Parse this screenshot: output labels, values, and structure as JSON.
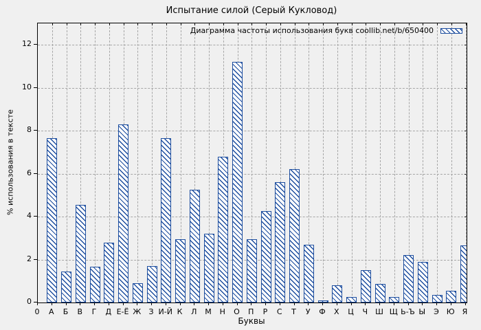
{
  "window": {
    "title": "Испытание силой (Серый Кукловод)"
  },
  "colors": {
    "bar": "#1b4c9e",
    "background": "#f0f0f0",
    "grid": "#a6a6a6",
    "axis": "#000000"
  },
  "chart_data": {
    "type": "bar",
    "title": "Испытание силой (Серый Кукловод)",
    "legend_label": "Диаграмма частоты использования букв coollib.net/b/650400",
    "legend_position": "top-right",
    "xlabel": "Буквы",
    "ylabel": "% использования в тексте",
    "origin_label": "0",
    "grid": true,
    "bar_style": "white fill with blue diagonal hatch, blue border",
    "ylim": [
      0,
      13
    ],
    "yticks": [
      0,
      2,
      4,
      6,
      8,
      10,
      12
    ],
    "categories": [
      "А",
      "Б",
      "В",
      "Г",
      "Д",
      "Е-Ё",
      "Ж",
      "З",
      "И-Й",
      "К",
      "Л",
      "М",
      "Н",
      "О",
      "П",
      "Р",
      "С",
      "Т",
      "У",
      "Ф",
      "Х",
      "Ц",
      "Ч",
      "Ш",
      "Щ",
      "Ь-Ъ",
      "Ы",
      "Э",
      "Ю",
      "Я"
    ],
    "values": [
      7.65,
      1.45,
      4.55,
      1.65,
      2.8,
      8.3,
      0.9,
      1.7,
      7.65,
      2.95,
      5.25,
      3.2,
      6.8,
      11.2,
      2.95,
      4.25,
      5.6,
      6.2,
      2.7,
      0.1,
      0.8,
      0.25,
      1.5,
      0.85,
      0.25,
      2.2,
      1.9,
      0.35,
      0.55,
      2.65
    ]
  }
}
